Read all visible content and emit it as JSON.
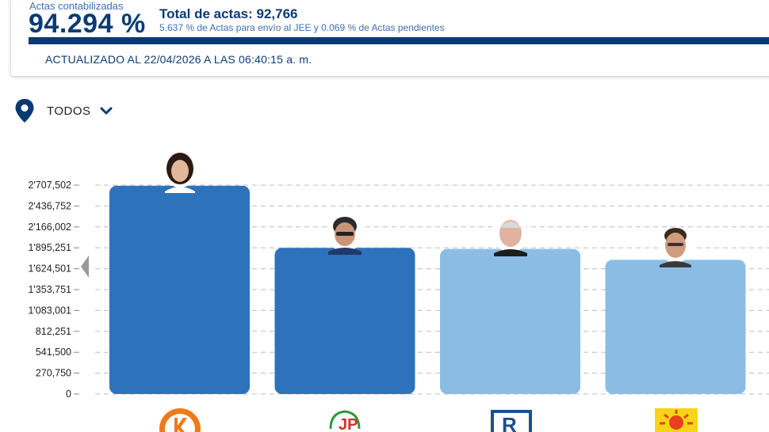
{
  "summary": {
    "actas_label": "Actas contabilizadas",
    "actas_pct": "94.294 %",
    "actas_fraction": 0.94294,
    "total_label": "Total de actas: 92,766",
    "subtext": "5.637 % de Actas para envío al JEE y 0.069 % de Actas pendientes",
    "updated": "ACTUALIZADO AL 22/04/2026 A LAS 06:40:15 a. m."
  },
  "filter": {
    "label": "TODOS"
  },
  "colors": {
    "accent": "#0a3a73",
    "bar_dark": "#2d73bc",
    "bar_light": "#8bbde4",
    "grid": "#bdbdbd"
  },
  "icons": [
    "location-pin-icon",
    "chevron-down-icon",
    "collapse-arrow-icon"
  ],
  "chart_data": {
    "type": "bar",
    "categories": [
      "",
      "",
      "",
      ""
    ],
    "values": [
      2700000,
      1895000,
      1880000,
      1740000
    ],
    "bar_colors": [
      "#2d73bc",
      "#2d73bc",
      "#8bbde4",
      "#8bbde4"
    ],
    "yticks": [
      0,
      270750,
      541500,
      812251,
      1083001,
      1353751,
      1624501,
      1895251,
      2166002,
      2436752,
      2707502
    ],
    "ytick_labels": [
      "0",
      "270,750",
      "541,500",
      "812,251",
      "1'083,001",
      "1'353,751",
      "1'624,501",
      "1'895,251",
      "2'166,002",
      "2'436,752",
      "2'707,502"
    ],
    "ylim": [
      0,
      2707502
    ],
    "grid": true,
    "title": "",
    "xlabel": "",
    "ylabel": ""
  }
}
